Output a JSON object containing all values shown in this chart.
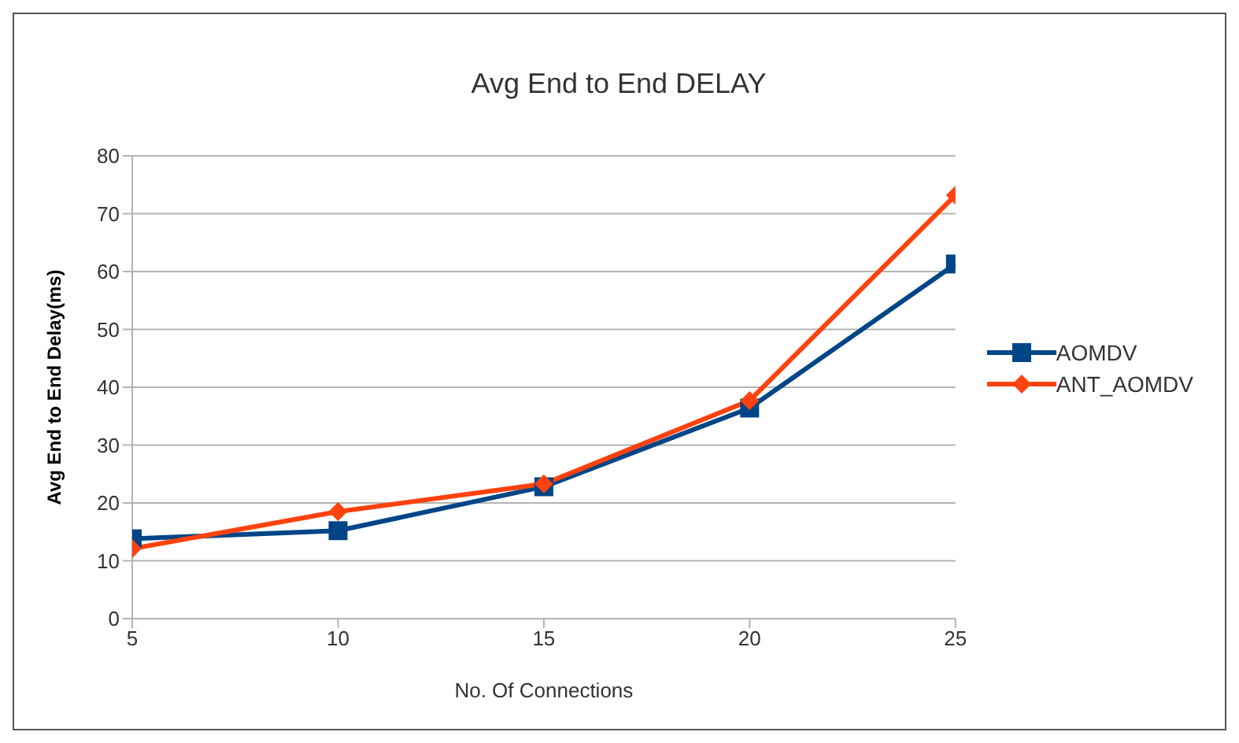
{
  "chart_data": {
    "type": "line",
    "title": "Avg End to End DELAY",
    "xlabel": "No. Of Connections",
    "ylabel": "Avg End to End Delay(ms)",
    "x": [
      5,
      10,
      15,
      20,
      25
    ],
    "xlim": [
      5,
      25
    ],
    "xticks": [
      5,
      10,
      15,
      20,
      25
    ],
    "ylim": [
      0,
      80
    ],
    "yticks": [
      0,
      10,
      20,
      30,
      40,
      50,
      60,
      70,
      80
    ],
    "grid": "y",
    "legend": "right",
    "series": [
      {
        "name": "AOMDV",
        "color": "#004586",
        "marker": "square",
        "values": [
          13.8,
          15.2,
          22.8,
          36.4,
          61.3
        ]
      },
      {
        "name": "ANT_AOMDV",
        "color": "#ff420e",
        "marker": "diamond",
        "values": [
          12.1,
          18.5,
          23.3,
          37.7,
          73.2
        ]
      }
    ]
  }
}
